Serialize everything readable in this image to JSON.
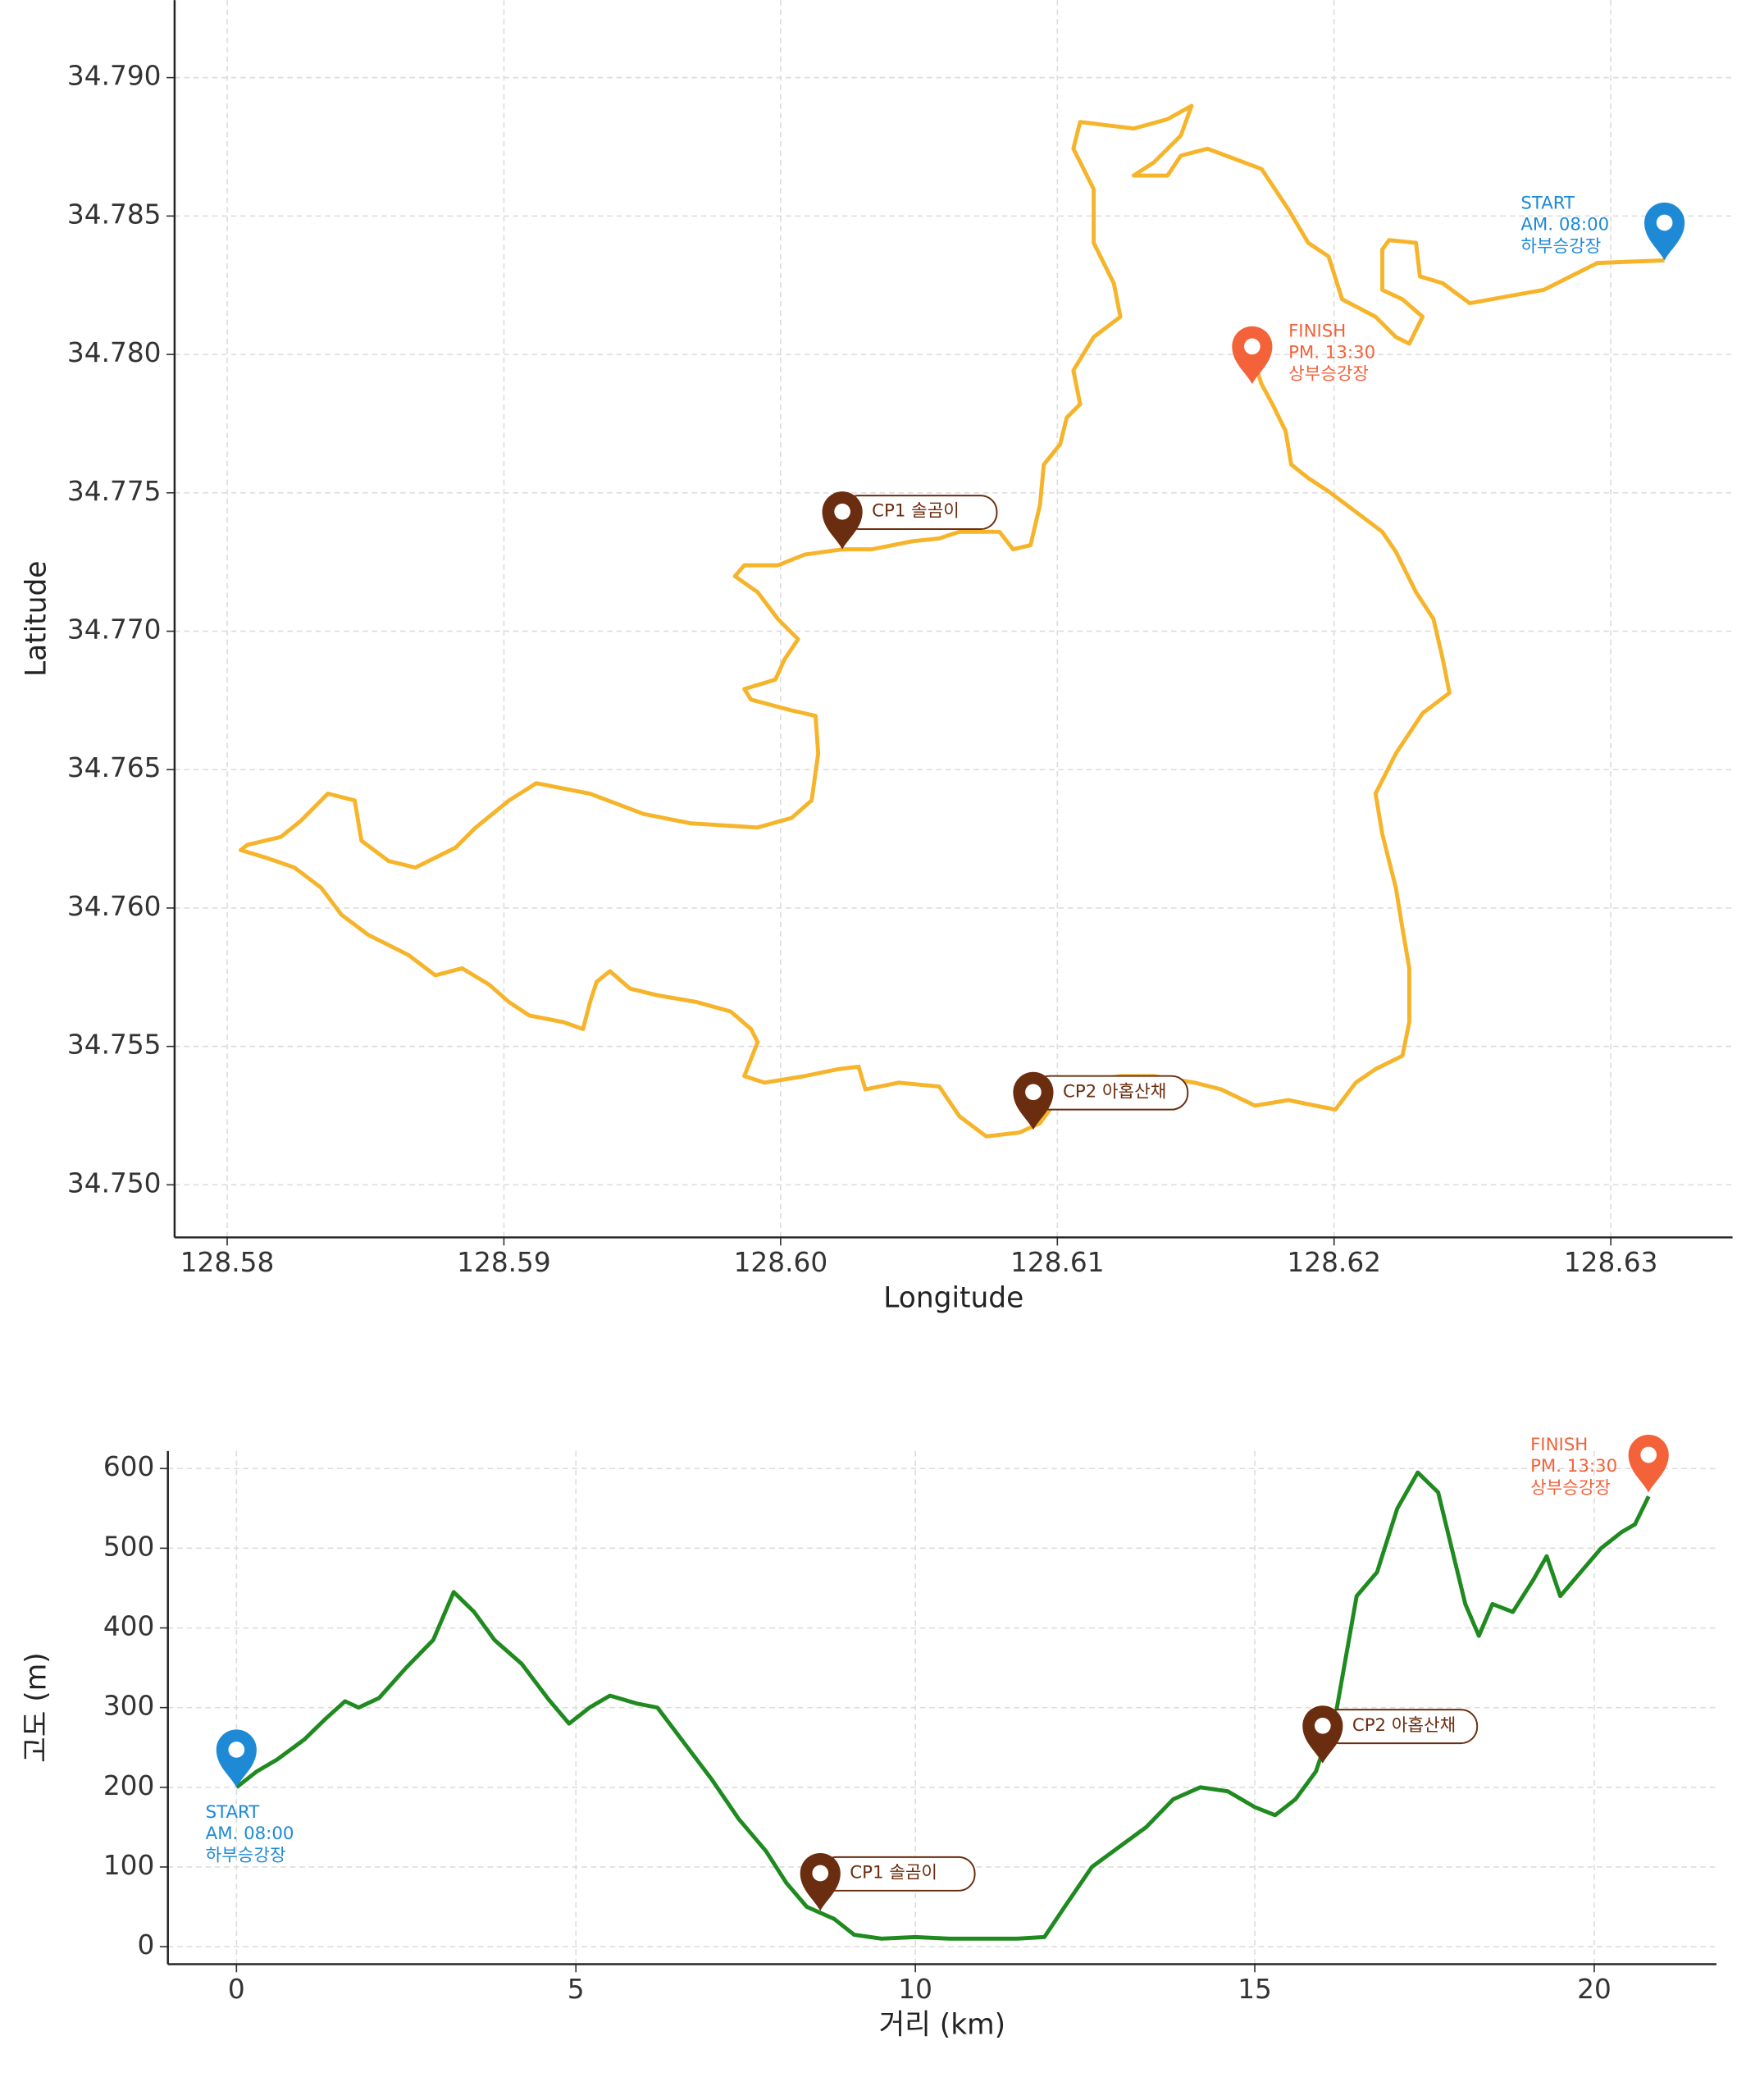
{
  "chart_data": [
    {
      "type": "route",
      "x_label": "Longitude",
      "y_label": "Latitude",
      "xlim": [
        128.5781,
        128.6344
      ],
      "ylim": [
        34.7481,
        34.7928
      ],
      "xticks": [
        128.58,
        128.59,
        {
          "value": 128.6,
          "label": "128.60"
        },
        128.61,
        128.62,
        128.63
      ],
      "yticks": [
        {
          "value": 34.75,
          "label": "34.750"
        },
        34.755,
        {
          "value": 34.76,
          "label": "34.760"
        },
        34.765,
        {
          "value": 34.77,
          "label": "34.770"
        },
        34.775,
        {
          "value": 34.78,
          "label": "34.780"
        },
        34.785,
        {
          "value": 34.79,
          "label": "34.790"
        }
      ],
      "grid": true,
      "x": [
        128.63194,
        128.62951,
        128.62757,
        128.6249,
        128.62393,
        128.6231,
        128.62296,
        128.62199,
        128.62174,
        128.62174,
        128.62247,
        128.6232,
        128.62272,
        128.62223,
        128.6215,
        128.62029,
        128.6198,
        128.61907,
        128.61835,
        128.61738,
        128.61543,
        128.61446,
        128.61398,
        128.61276,
        128.61349,
        128.61446,
        128.61485,
        128.61398,
        128.61276,
        128.61082,
        128.61058,
        128.61131,
        128.61131,
        128.61204,
        128.61228,
        128.61131,
        128.61058,
        128.61082,
        128.61034,
        128.6101,
        128.60951,
        128.60937,
        128.60903,
        128.6084,
        128.60791,
        128.60646,
        128.60573,
        128.60476,
        128.6033,
        128.60223,
        128.60087,
        128.5999,
        128.59869,
        128.59835,
        128.59917,
        128.5999,
        128.60063,
        128.60014,
        128.59981,
        128.59869,
        128.59893,
        128.60039,
        128.60126,
        128.60136,
        128.60112,
        128.60039,
        128.59917,
        128.59675,
        128.59505,
        128.59311,
        128.59117,
        128.59019,
        128.58898,
        128.58825,
        128.5868,
        128.58583,
        128.58485,
        128.58461,
        128.58364,
        128.58267,
        128.58194,
        128.58073,
        128.58049,
        128.58146,
        128.58243,
        128.5834,
        128.58413,
        128.5851,
        128.58655,
        128.58752,
        128.58849,
        128.58947,
        128.59019,
        128.59092,
        128.59214,
        128.59286,
        128.59311,
        128.59335,
        128.59383,
        128.59456,
        128.59553,
        128.59699,
        128.5982,
        128.59893,
        128.59917,
        128.59869,
        128.59942,
        128.60087,
        128.60209,
        128.60282,
        128.60306,
        128.60427,
        128.60573,
        128.60646,
        128.60743,
        128.60864,
        128.60937,
        128.6101,
        128.61058,
        128.61228,
        128.61349,
        128.61495,
        128.61592,
        128.61714,
        128.61835,
        128.61932,
        128.62005,
        128.62078,
        128.6215,
        128.62247,
        128.62272,
        128.62272,
        128.62247,
        128.62223,
        128.62174,
        128.6215,
        128.62223,
        128.6232,
        128.62417,
        128.62393,
        128.62359,
        128.62296,
        128.62223,
        128.62174,
        128.62078,
        128.6198,
        128.61907,
        128.61845,
        128.61825,
        128.61777,
        128.61738,
        128.61714
      ],
      "series": [
        {
          "color": "#f6b42a",
          "values": [
            34.7834,
            34.7833,
            34.78233,
            34.78185,
            34.78257,
            34.78282,
            34.78403,
            34.78413,
            34.78379,
            34.78233,
            34.78199,
            34.78136,
            34.78039,
            34.78063,
            34.78136,
            34.78199,
            34.78354,
            34.78403,
            34.78524,
            34.7867,
            34.78743,
            34.78718,
            34.78646,
            34.78646,
            34.78694,
            34.78791,
            34.78898,
            34.7885,
            34.78816,
            34.7884,
            34.78743,
            34.78597,
            34.78403,
            34.78257,
            34.78136,
            34.78063,
            34.77942,
            34.7782,
            34.77772,
            34.77675,
            34.77602,
            34.77456,
            34.77311,
            34.77296,
            34.77359,
            34.77359,
            34.77335,
            34.77325,
            34.77296,
            34.77296,
            34.77277,
            34.77238,
            34.77238,
            34.77199,
            34.77141,
            34.77044,
            34.76971,
            34.76898,
            34.76825,
            34.76791,
            34.76753,
            34.76714,
            34.76694,
            34.76558,
            34.76389,
            34.76325,
            34.76291,
            34.76306,
            34.7634,
            34.76413,
            34.76451,
            34.76389,
            34.76291,
            34.76218,
            34.76146,
            34.7617,
            34.76243,
            34.76389,
            34.76413,
            34.76316,
            34.76257,
            34.76228,
            34.76209,
            34.7618,
            34.76146,
            34.76073,
            34.75976,
            34.75903,
            34.7583,
            34.75757,
            34.75782,
            34.75723,
            34.7566,
            34.75612,
            34.75588,
            34.75563,
            34.7566,
            34.75733,
            34.75772,
            34.75709,
            34.75685,
            34.7566,
            34.75626,
            34.75563,
            34.75515,
            34.75393,
            34.75369,
            34.75393,
            34.75418,
            34.75427,
            34.75345,
            34.75369,
            34.75355,
            34.75248,
            34.75175,
            34.75189,
            34.75223,
            34.75321,
            34.75369,
            34.75393,
            34.75393,
            34.75369,
            34.75345,
            34.75286,
            34.75306,
            34.75286,
            34.75272,
            34.75369,
            34.75418,
            34.75466,
            34.75588,
            34.75782,
            34.75927,
            34.76073,
            34.76267,
            34.76413,
            34.76558,
            34.76704,
            34.76777,
            34.76898,
            34.77044,
            34.77141,
            34.77287,
            34.77359,
            34.77432,
            34.77505,
            34.77553,
            34.77602,
            34.77723,
            34.7782,
            34.77893,
            34.77966
          ]
        }
      ],
      "annotations": [
        {
          "lines": [
            "START",
            "AM. 08:00",
            "하부승강장"
          ],
          "x": 128.63194,
          "y": 34.7834,
          "color": "#1e8ad6"
        },
        {
          "lines": [
            "FINISH",
            "PM. 13:30",
            "상부승강장"
          ],
          "x": 128.61704,
          "y": 34.77893,
          "color": "#f4623a"
        },
        {
          "text": "CP1 솔곰이",
          "x": 128.60223,
          "y": 34.77296,
          "color": "#6b2d0f"
        },
        {
          "text": "CP2 아홉산채",
          "x": 128.60913,
          "y": 34.75199,
          "color": "#6b2d0f"
        }
      ]
    },
    {
      "type": "line",
      "x_label": "거리 (km)",
      "y_label": "고도 (m)",
      "xlim": [
        -1.01,
        21.8
      ],
      "ylim": [
        -22,
        622
      ],
      "xticks": [
        0,
        5,
        10,
        15,
        20
      ],
      "yticks": [
        0,
        100,
        200,
        300,
        400,
        500,
        600
      ],
      "grid": true,
      "x": [
        0,
        0.3,
        0.6,
        1,
        1.3,
        1.6,
        1.8,
        2.1,
        2.5,
        2.9,
        3.2,
        3.5,
        3.8,
        4.2,
        4.6,
        4.9,
        5.2,
        5.5,
        5.9,
        6.2,
        6.6,
        7,
        7.4,
        7.8,
        8.1,
        8.4,
        8.8,
        9.1,
        9.5,
        10,
        10.5,
        11,
        11.5,
        11.9,
        12.2,
        12.6,
        13,
        13.4,
        13.8,
        14.2,
        14.6,
        15,
        15.3,
        15.6,
        15.9,
        16.2,
        16.5,
        16.8,
        17.1,
        17.4,
        17.7,
        17.9,
        18.1,
        18.3,
        18.5,
        18.8,
        19.1,
        19.3,
        19.5,
        19.8,
        20.1,
        20.4,
        20.6,
        20.8
      ],
      "series": [
        {
          "color": "#1f8a1f",
          "values": [
            200,
            220,
            235,
            260,
            285,
            308,
            300,
            312,
            350,
            385,
            445,
            420,
            385,
            355,
            310,
            280,
            300,
            315,
            305,
            300,
            255,
            210,
            160,
            120,
            80,
            50,
            35,
            15,
            10,
            12,
            10,
            10,
            10,
            12,
            50,
            100,
            125,
            150,
            185,
            200,
            195,
            175,
            165,
            185,
            220,
            295,
            440,
            470,
            550,
            595,
            570,
            500,
            430,
            390,
            430,
            420,
            460,
            490,
            440,
            470,
            500,
            520,
            530,
            565
          ]
        }
      ],
      "annotations": [
        {
          "lines": [
            "START",
            "AM. 08:00",
            "하부승강장"
          ],
          "x": 0,
          "y": 200,
          "color": "#1e8ad6"
        },
        {
          "text": "CP1 솔곰이",
          "x": 8.6,
          "y": 45,
          "color": "#6b2d0f"
        },
        {
          "text": "CP2 아홉산채",
          "x": 16.0,
          "y": 230,
          "color": "#6b2d0f"
        },
        {
          "lines": [
            "FINISH",
            "PM. 13:30",
            "상부승강장"
          ],
          "x": 20.8,
          "y": 570,
          "color": "#f4623a"
        }
      ]
    }
  ]
}
